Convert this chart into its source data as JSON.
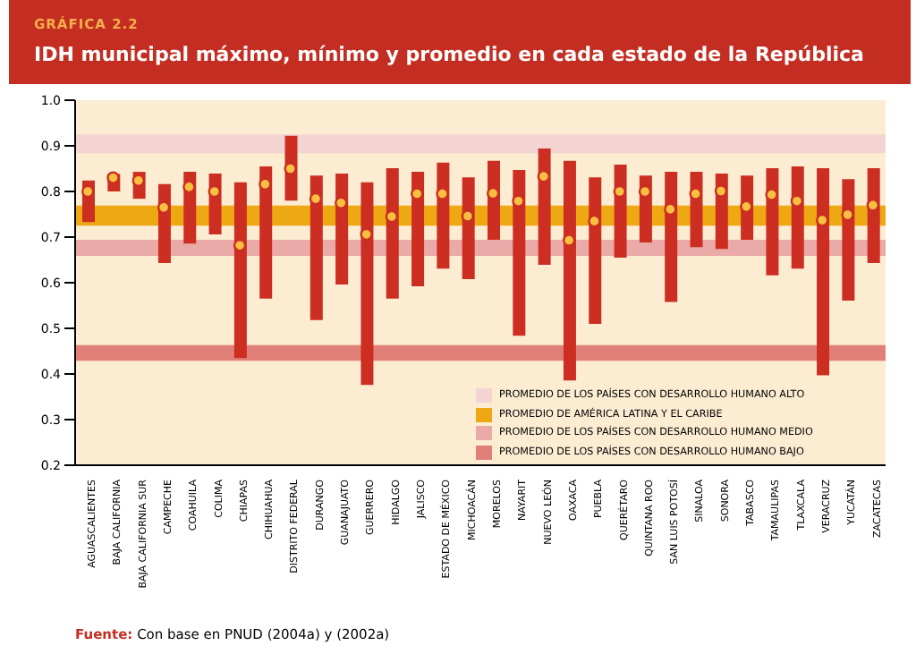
{
  "chart_data": {
    "type": "bar",
    "subtitle": "GRÁFICA 2.2",
    "title": "IDH municipal máximo, mínimo y promedio en cada estado de la República",
    "categories": [
      "AGUASCALIENTES",
      "BAJA CALIFORNIA",
      "BAJA CALIFORNIA SUR",
      "CAMPECHE",
      "COAHUILA",
      "COLIMA",
      "CHIAPAS",
      "CHIHUAHUA",
      "DISTRITO FEDERAL",
      "DURANGO",
      "GUANAJUATO",
      "GUERRERO",
      "HIDALGO",
      "JALISCO",
      "ESTADO DE MÉXICO",
      "MICHOACÁN",
      "MORELOS",
      "NAYARIT",
      "NUEVO LEÓN",
      "OAXACA",
      "PUEBLA",
      "QUERÉTARO",
      "QUINTANA ROO",
      "SAN LUIS POTOSÍ",
      "SINALOA",
      "SONORA",
      "TABASCO",
      "TAMAULIPAS",
      "TLAXCALA",
      "VERACRUZ",
      "YUCATÁN",
      "ZACATECAS"
    ],
    "series": [
      {
        "color": "#cc2e22",
        "base": [
          0.733,
          0.8,
          0.784,
          0.643,
          0.686,
          0.706,
          0.435,
          0.565,
          0.78,
          0.518,
          0.596,
          0.376,
          0.565,
          0.592,
          0.631,
          0.608,
          0.694,
          0.484,
          0.639,
          0.386,
          0.51,
          0.655,
          0.688,
          0.558,
          0.678,
          0.674,
          0.694,
          0.616,
          0.631,
          0.397,
          0.561,
          0.643
        ],
        "values": [
          0.091,
          0.038,
          0.059,
          0.173,
          0.157,
          0.133,
          0.385,
          0.29,
          0.142,
          0.317,
          0.243,
          0.444,
          0.286,
          0.251,
          0.232,
          0.223,
          0.173,
          0.363,
          0.255,
          0.481,
          0.321,
          0.204,
          0.147,
          0.285,
          0.165,
          0.165,
          0.141,
          0.235,
          0.224,
          0.454,
          0.266,
          0.208
        ]
      },
      {
        "type": "scatter",
        "color": "#f8c040",
        "marker": "circle",
        "x": [
          "AGUASCALIENTES",
          "BAJA CALIFORNIA",
          "BAJA CALIFORNIA SUR",
          "CAMPECHE",
          "COAHUILA",
          "COLIMA",
          "CHIAPAS",
          "CHIHUAHUA",
          "DISTRITO FEDERAL",
          "DURANGO",
          "GUANAJUATO",
          "GUERRERO",
          "HIDALGO",
          "JALISCO",
          "ESTADO DE MÉXICO",
          "MICHOACÁN",
          "MORELOS",
          "NAYARIT",
          "NUEVO LEÓN",
          "OAXACA",
          "PUEBLA",
          "QUERÉTARO",
          "QUINTANA ROO",
          "SAN LUIS POTOSÍ",
          "SINALOA",
          "SONORA",
          "TABASCO",
          "TAMAULIPAS",
          "TLAXCALA",
          "VERACRUZ",
          "YUCATÁN",
          "ZACATECAS"
        ],
        "values": [
          0.8,
          0.83,
          0.824,
          0.765,
          0.81,
          0.8,
          0.682,
          0.816,
          0.85,
          0.784,
          0.775,
          0.706,
          0.745,
          0.795,
          0.795,
          0.746,
          0.796,
          0.779,
          0.833,
          0.693,
          0.735,
          0.8,
          0.8,
          0.761,
          0.795,
          0.801,
          0.767,
          0.793,
          0.779,
          0.737,
          0.749,
          0.77
        ]
      }
    ],
    "ylim": [
      0.2,
      1
    ],
    "yticks": [
      0.2,
      0.3,
      0.4,
      0.5,
      0.6,
      0.7,
      0.8,
      0.9,
      {
        "value": 1,
        "label": "1.0"
      }
    ],
    "bands": [
      {
        "axis": "y",
        "from": 0.884,
        "to": 0.925,
        "label": "PROMEDIO DE LOS PAÍSES CON DESARROLLO HUMANO ALTO",
        "color": "#f4d3d3"
      },
      {
        "axis": "y",
        "from": 0.725,
        "to": 0.769,
        "label": "PROMEDIO DE AMÉRICA LATINA Y EL CARIBE",
        "color": "#eda813"
      },
      {
        "axis": "y",
        "from": 0.659,
        "to": 0.694,
        "label": "PROMEDIO DE LOS PAÍSES CON DESARROLLO HUMANO MEDIO",
        "color": "#eaaaa7"
      },
      {
        "axis": "y",
        "from": 0.429,
        "to": 0.463,
        "label": "PROMEDIO DE LOS PAÍSES CON DESARROLLO HUMANO BAJO",
        "color": "#e08078"
      }
    ],
    "legend": "bottom right",
    "annotations": [
      "Fuente: Con base en PNUD (2004a) y (2002a)"
    ]
  }
}
